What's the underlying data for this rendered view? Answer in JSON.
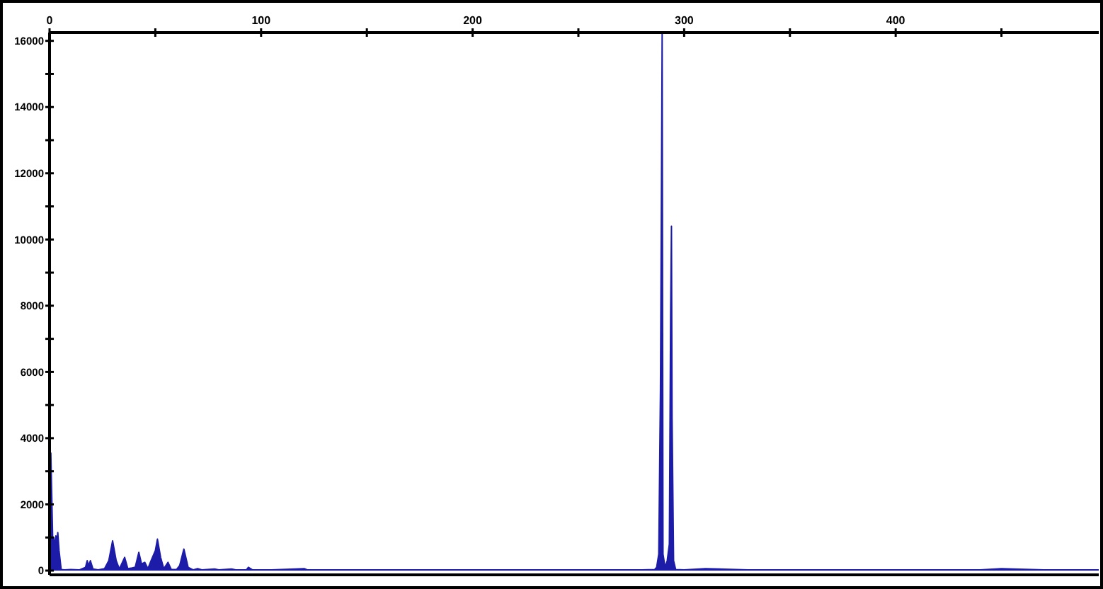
{
  "chart_data": {
    "type": "area",
    "x": [
      0,
      0.3,
      0.6,
      1,
      1.5,
      2,
      2.5,
      3,
      3.5,
      3.9,
      4.5,
      5.5,
      7,
      10,
      14,
      17,
      17.8,
      18.5,
      19.3,
      20.5,
      23,
      26,
      28,
      29.8,
      31.5,
      33,
      35.5,
      37,
      39,
      40.5,
      42.2,
      43.5,
      45,
      46.5,
      48,
      50,
      51,
      52.5,
      54,
      56,
      57.5,
      60,
      61.5,
      63.5,
      65.5,
      68,
      70,
      72,
      78,
      80,
      86,
      88,
      93,
      94,
      96,
      105,
      120.4,
      122,
      150,
      200,
      250,
      280,
      286,
      287,
      288,
      288.8,
      289.3,
      289.6,
      290,
      291,
      292,
      293,
      293.6,
      294,
      294.3,
      295,
      296,
      300,
      310,
      330,
      380,
      440,
      450,
      470,
      496
    ],
    "series": [
      {
        "color": "#1c1ca8",
        "values": [
          200,
          1500,
          3550,
          2400,
          900,
          1000,
          700,
          1050,
          900,
          1150,
          600,
          30,
          20,
          30,
          20,
          100,
          300,
          150,
          300,
          50,
          20,
          60,
          300,
          900,
          300,
          50,
          400,
          60,
          80,
          100,
          550,
          200,
          250,
          60,
          300,
          600,
          950,
          400,
          60,
          250,
          40,
          30,
          150,
          650,
          100,
          20,
          60,
          20,
          50,
          20,
          50,
          20,
          20,
          100,
          20,
          20,
          60,
          20,
          20,
          20,
          20,
          20,
          30,
          100,
          500,
          5500,
          11900,
          16200,
          500,
          100,
          300,
          800,
          7700,
          10400,
          4600,
          300,
          30,
          20,
          60,
          20,
          20,
          20,
          60,
          20,
          20
        ]
      }
    ],
    "xlim": [
      0,
      496
    ],
    "ylim": [
      0,
      16250
    ],
    "xticks": [
      0,
      {
        "value": 50,
        "label": null
      },
      100,
      {
        "value": 150,
        "label": null
      },
      200,
      {
        "value": 250,
        "label": null
      },
      300,
      {
        "value": 350,
        "label": null
      },
      400,
      {
        "value": 450,
        "label": null
      }
    ],
    "yticks": [
      0,
      {
        "value": 1000,
        "label": null
      },
      2000,
      {
        "value": 3000,
        "label": null
      },
      4000,
      {
        "value": 5000,
        "label": null
      },
      6000,
      {
        "value": 7000,
        "label": null
      },
      8000,
      {
        "value": 9000,
        "label": null
      },
      10000,
      {
        "value": 11000,
        "label": null
      },
      12000,
      {
        "value": 13000,
        "label": null
      },
      14000,
      {
        "value": 15000,
        "label": null
      },
      16000
    ],
    "grid": false
  }
}
